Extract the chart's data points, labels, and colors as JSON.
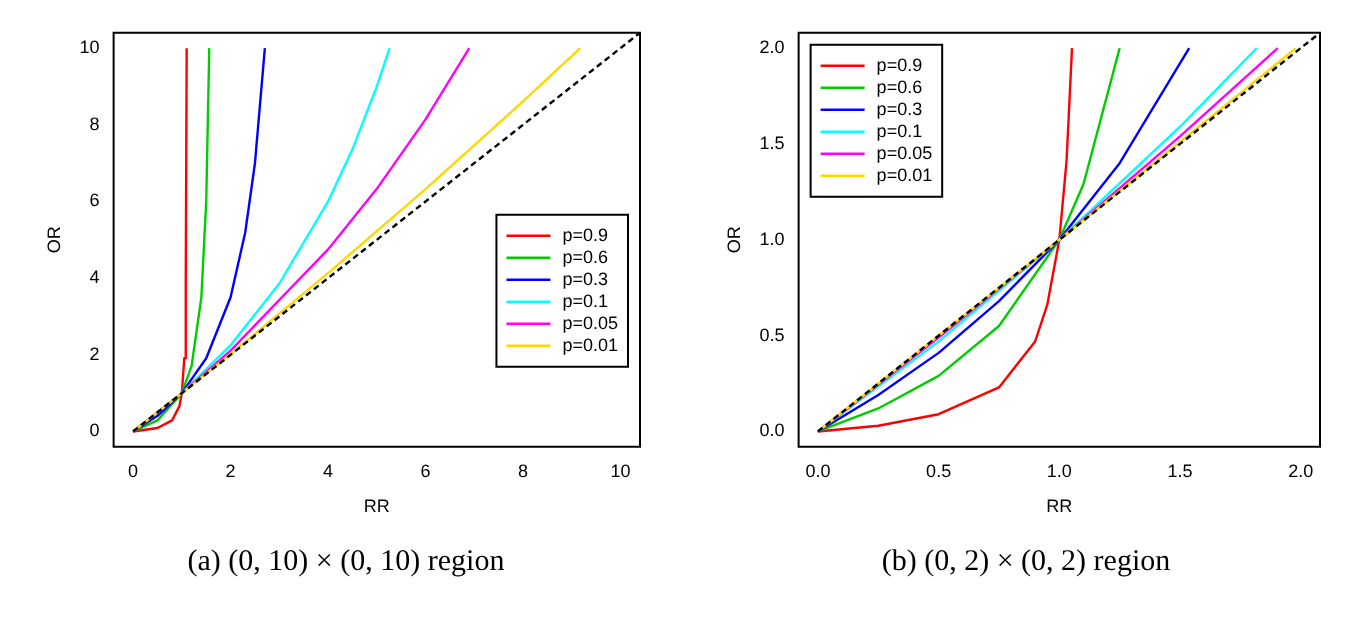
{
  "chart_data": [
    {
      "type": "line",
      "xlabel": "RR",
      "ylabel": "OR",
      "xlim": [
        -0.4,
        10.4
      ],
      "ylim": [
        -0.4,
        10.4
      ],
      "xticks": [
        0,
        2,
        4,
        6,
        8,
        10
      ],
      "yticks": [
        0,
        2,
        4,
        6,
        8,
        10
      ],
      "grid": false,
      "legend": "bottom right",
      "marker": "none",
      "annotations": [
        "(a) (0, 10) × (0, 10) region"
      ],
      "series": [
        {
          "name": "p=0.9",
          "color": "#ff0000",
          "x": [
            0,
            0.5,
            0.8,
            0.95,
            1,
            1.05,
            1.08,
            1.099
          ],
          "values": [
            0,
            0.09,
            0.29,
            0.66,
            1,
            1.91,
            3.86,
            10
          ]
        },
        {
          "name": "p=0.6",
          "color": "#00cd00",
          "x": [
            0,
            0.5,
            1,
            1.2,
            1.4,
            1.5,
            1.5625
          ],
          "values": [
            0,
            0.29,
            1,
            1.71,
            3.5,
            6,
            10
          ]
        },
        {
          "name": "p=0.3",
          "color": "#0000ff",
          "x": [
            0,
            0.5,
            1,
            1.5,
            2,
            2.3,
            2.5,
            2.703
          ],
          "values": [
            0,
            0.41,
            1,
            1.91,
            3.5,
            5.19,
            7,
            10
          ]
        },
        {
          "name": "p=0.1",
          "color": "#00ffff",
          "x": [
            0,
            1,
            2,
            3,
            4,
            4.5,
            5,
            5.263
          ],
          "values": [
            0,
            1,
            2.25,
            3.86,
            6,
            7.36,
            9,
            10
          ]
        },
        {
          "name": "p=0.05",
          "color": "#ff00ff",
          "x": [
            0,
            1,
            2,
            4,
            5,
            6,
            6.897
          ],
          "values": [
            0,
            1,
            2.11,
            4.75,
            6.33,
            8.14,
            10
          ]
        },
        {
          "name": "p=0.01",
          "color": "#ffd700",
          "x": [
            0,
            1,
            2,
            4,
            6,
            8,
            9.174
          ],
          "values": [
            0,
            1,
            2.02,
            4.13,
            6.32,
            8.61,
            10
          ]
        },
        {
          "color": "#000000",
          "line_style": "dashed",
          "x": [
            0,
            10.4
          ],
          "values": [
            0,
            10.4
          ]
        }
      ]
    },
    {
      "type": "line",
      "xlabel": "RR",
      "ylabel": "OR",
      "xlim": [
        -0.08,
        2.08
      ],
      "ylim": [
        -0.08,
        2.08
      ],
      "xticks": [
        {
          "value": 0,
          "label": "0.0"
        },
        {
          "value": 0.5,
          "label": "0.5"
        },
        {
          "value": 1,
          "label": "1.0"
        },
        {
          "value": 1.5,
          "label": "1.5"
        },
        {
          "value": 2,
          "label": "2.0"
        }
      ],
      "yticks": [
        {
          "value": 0,
          "label": "0.0"
        },
        {
          "value": 0.5,
          "label": "0.5"
        },
        {
          "value": 1,
          "label": "1.0"
        },
        {
          "value": 1.5,
          "label": "1.5"
        },
        {
          "value": 2,
          "label": "2.0"
        }
      ],
      "grid": false,
      "legend": "top left",
      "marker": "none",
      "annotations": [
        "(b) (0, 2) × (0, 2) region"
      ],
      "series": [
        {
          "name": "p=0.9",
          "color": "#ff0000",
          "x": [
            0,
            0.25,
            0.5,
            0.75,
            0.9,
            0.95,
            1,
            1.03,
            1.0526
          ],
          "values": [
            0,
            0.03,
            0.09,
            0.23,
            0.47,
            0.66,
            1,
            1.41,
            2
          ]
        },
        {
          "name": "p=0.6",
          "color": "#00cd00",
          "x": [
            0,
            0.25,
            0.5,
            0.75,
            1,
            1.1,
            1.25
          ],
          "values": [
            0,
            0.12,
            0.29,
            0.55,
            1,
            1.29,
            2
          ]
        },
        {
          "name": "p=0.3",
          "color": "#0000ff",
          "x": [
            0,
            0.25,
            0.5,
            0.75,
            1,
            1.25,
            1.538
          ],
          "values": [
            0,
            0.19,
            0.41,
            0.68,
            1,
            1.4,
            2
          ]
        },
        {
          "name": "p=0.1",
          "color": "#00ffff",
          "x": [
            0,
            0.5,
            1,
            1.5,
            1.818
          ],
          "values": [
            0,
            0.47,
            1,
            1.59,
            2
          ]
        },
        {
          "name": "p=0.05",
          "color": "#ff00ff",
          "x": [
            0,
            0.5,
            1,
            1.5,
            1.905
          ],
          "values": [
            0,
            0.49,
            1,
            1.54,
            2
          ]
        },
        {
          "name": "p=0.01",
          "color": "#ffd700",
          "x": [
            0,
            0.5,
            1,
            1.5,
            1.98
          ],
          "values": [
            0,
            0.5,
            1,
            1.51,
            2
          ]
        },
        {
          "color": "#000000",
          "line_style": "dashed",
          "x": [
            0,
            2.08
          ],
          "values": [
            0,
            2.08
          ]
        }
      ]
    }
  ]
}
